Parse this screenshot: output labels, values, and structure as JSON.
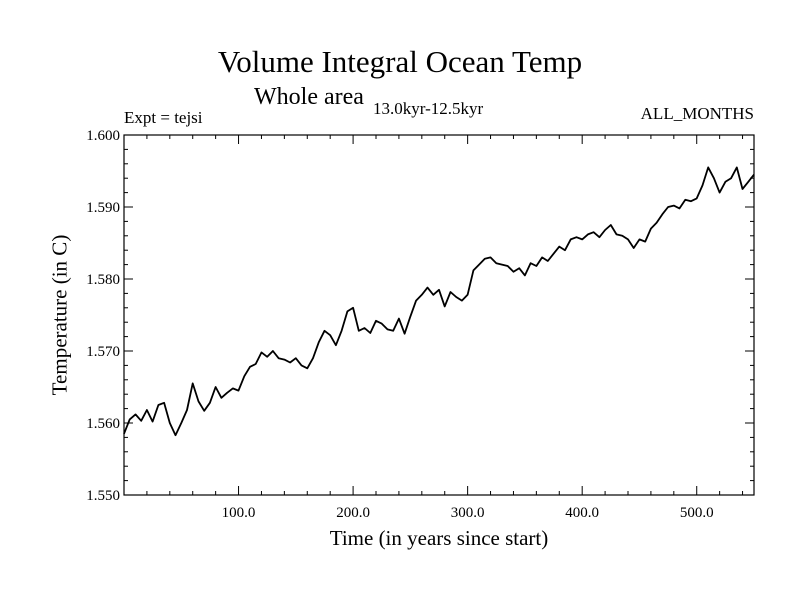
{
  "chart_data": {
    "type": "line",
    "title": "Volume Integral Ocean Temp",
    "subtitle": "Whole area",
    "period": "13.0kyr-12.5kyr",
    "experiment": "Expt = tejsi",
    "months": "ALL_MONTHS",
    "xlabel": "Time (in years since start)",
    "ylabel": "Temperature (in C)",
    "xlim": [
      0,
      550
    ],
    "ylim": [
      1.55,
      1.6
    ],
    "xticks": [
      100,
      200,
      300,
      400,
      500
    ],
    "xtick_labels": [
      "100.0",
      "200.0",
      "300.0",
      "400.0",
      "500.0"
    ],
    "yticks": [
      1.55,
      1.56,
      1.57,
      1.58,
      1.59,
      1.6
    ],
    "ytick_labels": [
      "1.550",
      "1.560",
      "1.570",
      "1.580",
      "1.590",
      "1.600"
    ],
    "series": [
      {
        "name": "Volume integral ocean temperature",
        "x": [
          0,
          5,
          10,
          15,
          20,
          25,
          30,
          35,
          40,
          45,
          50,
          55,
          60,
          65,
          70,
          75,
          80,
          85,
          90,
          95,
          100,
          105,
          110,
          115,
          120,
          125,
          130,
          135,
          140,
          145,
          150,
          155,
          160,
          165,
          170,
          175,
          180,
          185,
          190,
          195,
          200,
          205,
          210,
          215,
          220,
          225,
          230,
          235,
          240,
          245,
          250,
          255,
          260,
          265,
          270,
          275,
          280,
          285,
          290,
          295,
          300,
          305,
          310,
          315,
          320,
          325,
          330,
          335,
          340,
          345,
          350,
          355,
          360,
          365,
          370,
          375,
          380,
          385,
          390,
          395,
          400,
          405,
          410,
          415,
          420,
          425,
          430,
          435,
          440,
          445,
          450,
          455,
          460,
          465,
          470,
          475,
          480,
          485,
          490,
          495,
          500,
          505,
          510,
          515,
          520,
          525,
          530,
          535,
          540,
          545,
          550
        ],
        "values": [
          1.5585,
          1.5605,
          1.5612,
          1.5603,
          1.5618,
          1.5602,
          1.5625,
          1.5628,
          1.56,
          1.5583,
          1.56,
          1.5618,
          1.5655,
          1.563,
          1.5617,
          1.5628,
          1.565,
          1.5635,
          1.5642,
          1.5648,
          1.5645,
          1.5665,
          1.5678,
          1.5682,
          1.5698,
          1.5692,
          1.57,
          1.569,
          1.5688,
          1.5684,
          1.569,
          1.568,
          1.5676,
          1.569,
          1.5712,
          1.5728,
          1.5722,
          1.5708,
          1.5728,
          1.5755,
          1.576,
          1.5728,
          1.5732,
          1.5725,
          1.5742,
          1.5738,
          1.573,
          1.5728,
          1.5745,
          1.5724,
          1.5748,
          1.577,
          1.5778,
          1.5788,
          1.5778,
          1.5785,
          1.5762,
          1.5782,
          1.5775,
          1.577,
          1.5778,
          1.5812,
          1.582,
          1.5828,
          1.583,
          1.5822,
          1.582,
          1.5818,
          1.581,
          1.5815,
          1.5805,
          1.5822,
          1.5818,
          1.583,
          1.5825,
          1.5835,
          1.5845,
          1.584,
          1.5855,
          1.5858,
          1.5855,
          1.5862,
          1.5865,
          1.5858,
          1.5868,
          1.5875,
          1.5862,
          1.586,
          1.5855,
          1.5843,
          1.5855,
          1.5852,
          1.587,
          1.5878,
          1.589,
          1.59,
          1.5902,
          1.5898,
          1.591,
          1.5908,
          1.5912,
          1.593,
          1.5955,
          1.594,
          1.592,
          1.5935,
          1.594,
          1.5955,
          1.5925,
          1.5935,
          1.5945
        ]
      }
    ]
  }
}
